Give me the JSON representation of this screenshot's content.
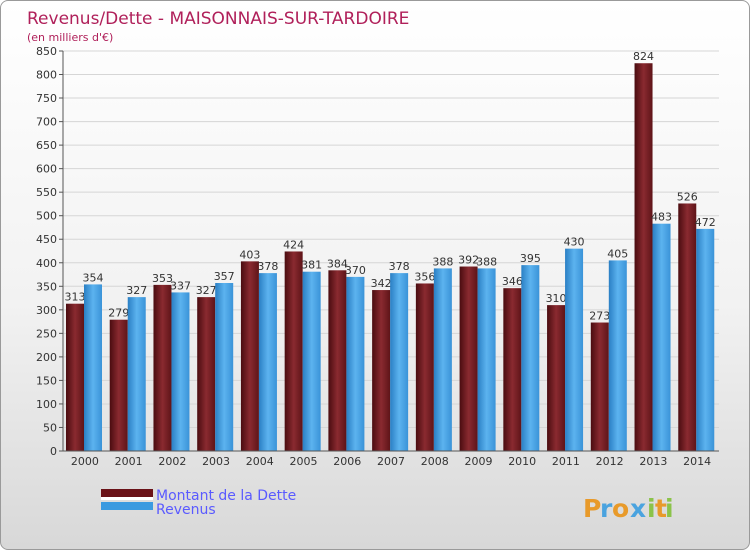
{
  "chart_data": {
    "type": "bar",
    "title": "Revenus/Dette - MAISONNAIS-SUR-TARDOIRE",
    "subtitle": "(en milliers d'€)",
    "categories": [
      "2000",
      "2001",
      "2002",
      "2003",
      "2004",
      "2005",
      "2006",
      "2007",
      "2008",
      "2009",
      "2010",
      "2011",
      "2012",
      "2013",
      "2014"
    ],
    "series": [
      {
        "name": "Montant de la Dette",
        "color": "#7a1e24",
        "values": [
          313,
          279,
          353,
          327,
          403,
          424,
          384,
          342,
          356,
          392,
          346,
          310,
          273,
          824,
          526
        ]
      },
      {
        "name": "Revenus",
        "color": "#3ea0e6",
        "values": [
          354,
          327,
          337,
          357,
          378,
          381,
          370,
          378,
          388,
          388,
          395,
          430,
          405,
          483,
          472
        ]
      }
    ],
    "ylim": [
      0,
      850
    ],
    "yticks": [
      0,
      50,
      100,
      150,
      200,
      250,
      300,
      350,
      400,
      450,
      500,
      550,
      600,
      650,
      700,
      750,
      800,
      850
    ],
    "grid": true,
    "legend_position": "bottom-left",
    "xlabel": "",
    "ylabel": ""
  },
  "branding": {
    "letters": [
      "P",
      "r",
      "o",
      "x",
      "i",
      "t",
      "i"
    ],
    "colors": [
      "#e89a2a",
      "#4aa3df",
      "#e89a2a",
      "#4aa3df",
      "#8bc34a",
      "#e89a2a",
      "#8bc34a"
    ]
  }
}
